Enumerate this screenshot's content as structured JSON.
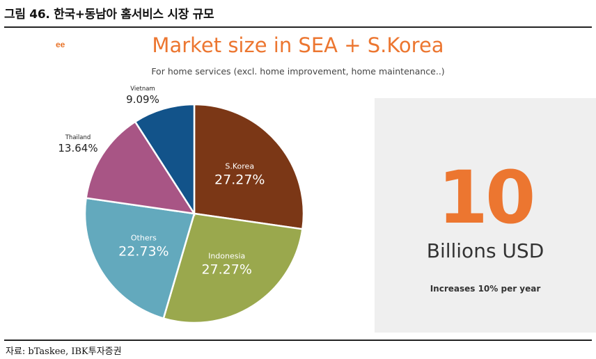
{
  "figure": {
    "title": "그림 46. 한국+동남아 홈서비스 시장 규모",
    "source": "자료: bTaskee, IBK투자증권"
  },
  "chart_data": {
    "type": "pie",
    "title": "Market size in SEA + S.Korea",
    "subtitle": "For home services (excl. home improvement, home maintenance..)",
    "start_angle_deg": 0,
    "slices": [
      {
        "name": "S.Korea",
        "label": "27.27%",
        "value": 27.27,
        "color": "#7b3716",
        "label_inside": true
      },
      {
        "name": "Indonesia",
        "label": "27.27%",
        "value": 27.27,
        "color": "#9aa84d",
        "label_inside": true
      },
      {
        "name": "Others",
        "label": "22.73%",
        "value": 22.73,
        "color": "#63a9bd",
        "label_inside": true
      },
      {
        "name": "Thailand",
        "label": "13.64%",
        "value": 13.64,
        "color": "#a85585",
        "label_inside": false
      },
      {
        "name": "Vietnam",
        "label": "9.09%",
        "value": 9.09,
        "color": "#12538a",
        "label_inside": false
      }
    ]
  },
  "logo_fragment": "ee",
  "callout": {
    "big_number": "10",
    "unit": "Billions USD",
    "growth_text": "Increases 10% per year",
    "accent_color": "#ec7630"
  }
}
